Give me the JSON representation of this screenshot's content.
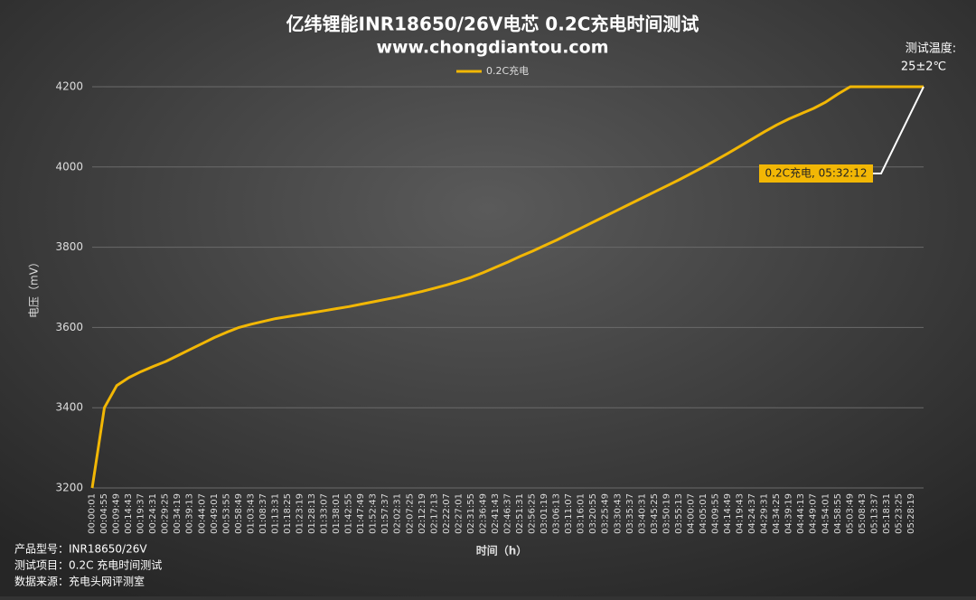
{
  "chart_data": {
    "type": "line",
    "title": "亿纬锂能INR18650/26V电芯 0.2C充电时间测试",
    "subtitle": "www.chongdiantou.com",
    "temperature_label": "测试温度:",
    "temperature_value": "25±2℃",
    "ylabel": "电压（mV）",
    "xlabel": "时间（h）",
    "ylim": [
      3200,
      4200
    ],
    "yticks": [
      3200,
      3400,
      3600,
      3800,
      4000,
      4200
    ],
    "grid": true,
    "legend": "top",
    "categories": [
      "00:00:01",
      "00:04:55",
      "00:09:49",
      "00:14:43",
      "00:19:37",
      "00:24:31",
      "00:29:25",
      "00:34:19",
      "00:39:13",
      "00:44:07",
      "00:49:01",
      "00:53:55",
      "00:58:49",
      "01:03:43",
      "01:08:37",
      "01:13:31",
      "01:18:25",
      "01:23:19",
      "01:28:13",
      "01:33:07",
      "01:38:01",
      "01:42:55",
      "01:47:49",
      "01:52:43",
      "01:57:37",
      "02:02:31",
      "02:07:25",
      "02:12:19",
      "02:17:13",
      "02:22:07",
      "02:27:01",
      "02:31:55",
      "02:36:49",
      "02:41:43",
      "02:46:37",
      "02:51:31",
      "02:56:25",
      "03:01:19",
      "03:06:13",
      "03:11:07",
      "03:16:01",
      "03:20:55",
      "03:25:49",
      "03:30:43",
      "03:35:37",
      "03:40:31",
      "03:45:25",
      "03:50:19",
      "03:55:13",
      "04:00:07",
      "04:05:01",
      "04:09:55",
      "04:14:49",
      "04:19:43",
      "04:24:37",
      "04:29:31",
      "04:34:25",
      "04:39:19",
      "04:44:13",
      "04:49:07",
      "04:54:01",
      "04:58:55",
      "05:03:49",
      "05:08:43",
      "05:13:37",
      "05:18:31",
      "05:23:25",
      "05:28:19",
      null
    ],
    "series": [
      {
        "name": "0.2C充电",
        "color": "#f2b705",
        "values": [
          3200,
          3400,
          3455,
          3475,
          3490,
          3503,
          3515,
          3530,
          3545,
          3560,
          3575,
          3588,
          3600,
          3608,
          3615,
          3622,
          3627,
          3632,
          3637,
          3642,
          3647,
          3652,
          3658,
          3664,
          3670,
          3676,
          3683,
          3690,
          3698,
          3706,
          3715,
          3725,
          3737,
          3750,
          3763,
          3777,
          3790,
          3804,
          3818,
          3833,
          3848,
          3863,
          3878,
          3893,
          3908,
          3923,
          3938,
          3953,
          3968,
          3984,
          4000,
          4017,
          4034,
          4052,
          4070,
          4088,
          4105,
          4120,
          4133,
          4146,
          4162,
          4182,
          4200,
          4200,
          4200,
          4200,
          4200,
          4200,
          4200
        ]
      }
    ],
    "annotation": "0.2C充电, 05:32:12",
    "notes": [
      "产品型号：INR18650/26V",
      "测试项目：0.2C 充电时间测试",
      "数据来源：充电头网评测室"
    ]
  }
}
